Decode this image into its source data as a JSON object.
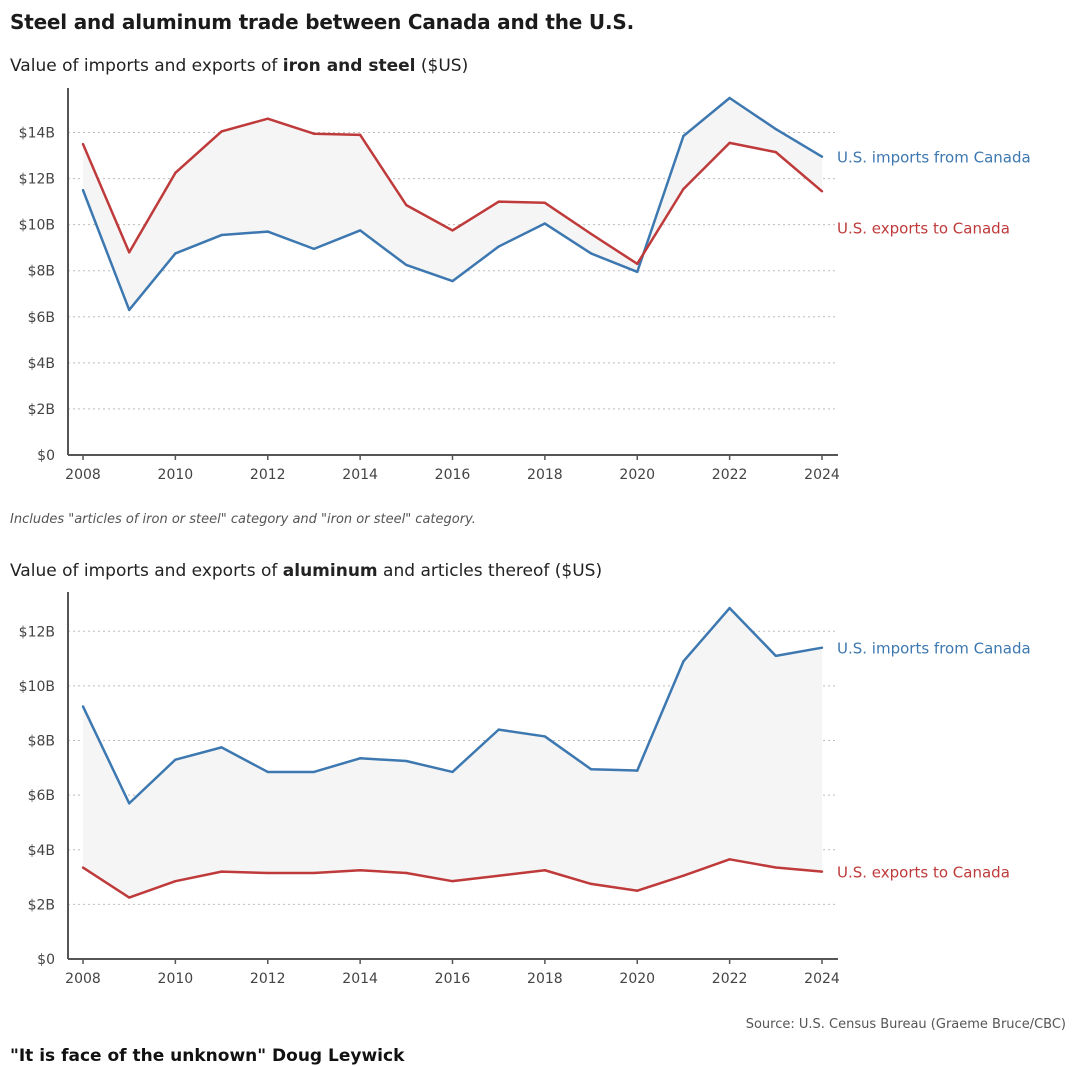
{
  "header": {
    "title": "Steel and aluminum trade between Canada and the U.S."
  },
  "note": "Includes \"articles of iron or steel\" category and \"iron or steel\" category.",
  "source": "Source: U.S. Census Bureau (Graeme Bruce/CBC)",
  "cutoff_text": "\"It is face of the unknown\" Doug Leywick",
  "colors": {
    "imports": "#3d78b0",
    "exports": "#bf3a3a",
    "band": "#f5f5f5",
    "grid": "#bdbdbd",
    "axis": "#555555"
  },
  "chart_data": [
    {
      "type": "line",
      "subtitle": {
        "pre": "Value of imports and exports of ",
        "bold": "iron and steel",
        "post": " ($US)"
      },
      "x": [
        2008,
        2009,
        2010,
        2011,
        2012,
        2013,
        2014,
        2015,
        2016,
        2017,
        2018,
        2019,
        2020,
        2021,
        2022,
        2023,
        2024
      ],
      "series": [
        {
          "name": "U.S. imports from Canada",
          "values": [
            11.5,
            6.3,
            8.75,
            9.55,
            9.7,
            8.95,
            9.75,
            8.25,
            7.55,
            9.05,
            10.05,
            8.75,
            7.95,
            13.85,
            15.5,
            14.15,
            12.95
          ]
        },
        {
          "name": "U.S. exports to Canada",
          "values": [
            13.5,
            8.8,
            12.25,
            14.05,
            14.6,
            13.95,
            13.9,
            10.85,
            9.75,
            11.0,
            10.95,
            9.6,
            8.3,
            11.55,
            13.55,
            13.15,
            11.45
          ]
        }
      ],
      "yticks": [
        "$0",
        "$2B",
        "$4B",
        "$6B",
        "$8B",
        "$10B",
        "$12B",
        "$14B"
      ],
      "xticks": [
        "2008",
        "2010",
        "2012",
        "2014",
        "2016",
        "2018",
        "2020",
        "2022",
        "2024"
      ],
      "ylim": [
        0,
        15.5
      ],
      "grid": true,
      "legend_position": "right"
    },
    {
      "type": "line",
      "subtitle": {
        "pre": "Value of imports and exports of ",
        "bold": "aluminum",
        "post": " and articles thereof ($US)"
      },
      "x": [
        2008,
        2009,
        2010,
        2011,
        2012,
        2013,
        2014,
        2015,
        2016,
        2017,
        2018,
        2019,
        2020,
        2021,
        2022,
        2023,
        2024
      ],
      "series": [
        {
          "name": "U.S. imports from Canada",
          "values": [
            9.25,
            5.7,
            7.3,
            7.75,
            6.85,
            6.85,
            7.35,
            7.25,
            6.85,
            8.4,
            8.15,
            6.95,
            6.9,
            10.9,
            12.85,
            11.1,
            11.4
          ]
        },
        {
          "name": "U.S. exports to Canada",
          "values": [
            3.35,
            2.25,
            2.85,
            3.2,
            3.15,
            3.15,
            3.25,
            3.15,
            2.85,
            3.05,
            3.25,
            2.75,
            2.5,
            3.05,
            3.65,
            3.35,
            3.2
          ]
        }
      ],
      "yticks": [
        "$0",
        "$2B",
        "$4B",
        "$6B",
        "$8B",
        "$10B",
        "$12B"
      ],
      "xticks": [
        "2008",
        "2010",
        "2012",
        "2014",
        "2016",
        "2018",
        "2020",
        "2022",
        "2024"
      ],
      "ylim": [
        0,
        13
      ],
      "grid": true,
      "legend_position": "right"
    }
  ]
}
